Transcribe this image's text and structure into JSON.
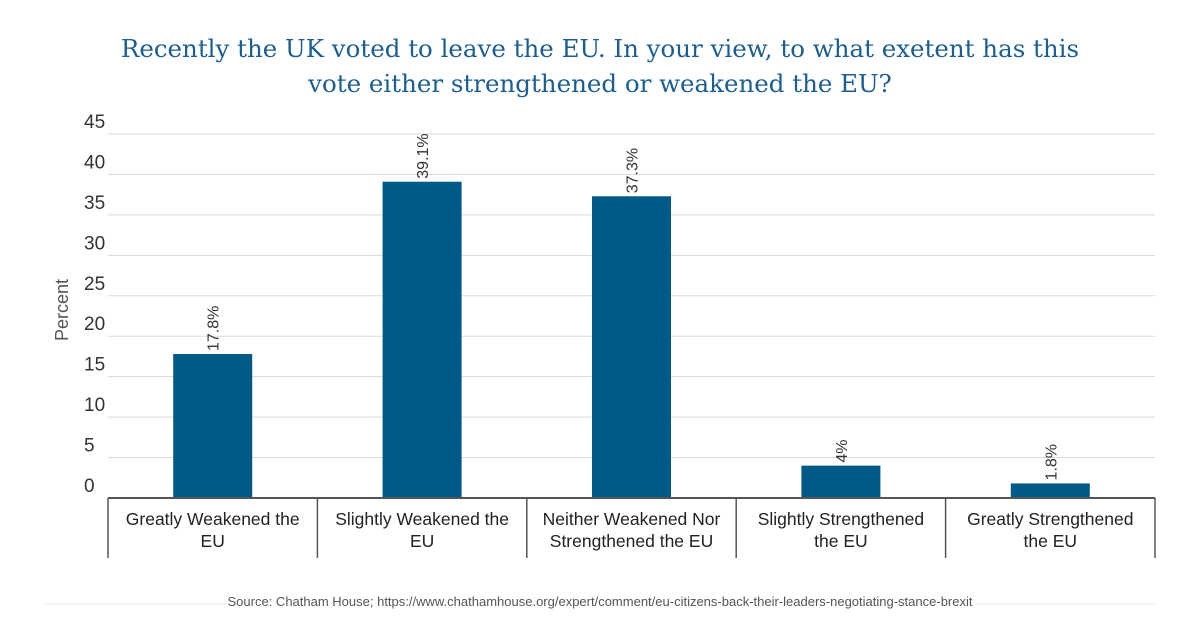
{
  "chart_data": {
    "type": "bar",
    "title": [
      "Recently the UK voted to leave the EU. In your view, to what exetent has this",
      "vote either strengthened or weakened the EU?"
    ],
    "xlabel": "",
    "ylabel": "Percent",
    "ylim": [
      0,
      45
    ],
    "yticks": [
      0,
      5,
      10,
      15,
      20,
      25,
      30,
      35,
      40,
      45
    ],
    "categories": [
      [
        "Greatly Weakened the",
        "EU"
      ],
      [
        "Slightly Weakened the",
        "EU"
      ],
      [
        "Neither Weakened Nor",
        "Strengthened the EU"
      ],
      [
        "Slightly Strengthened",
        "the EU"
      ],
      [
        "Greatly Strengthened",
        "the EU"
      ]
    ],
    "values": [
      17.8,
      39.1,
      37.3,
      4,
      1.8
    ],
    "data_labels": [
      "17.8%",
      "39.1%",
      "37.3%",
      "4%",
      "1.8%"
    ],
    "bar_color": "#005a87",
    "grid": true,
    "source": "Source: Chatham House; https://www.chathamhouse.org/expert/comment/eu-citizens-back-their-leaders-negotiating-stance-brexit"
  }
}
